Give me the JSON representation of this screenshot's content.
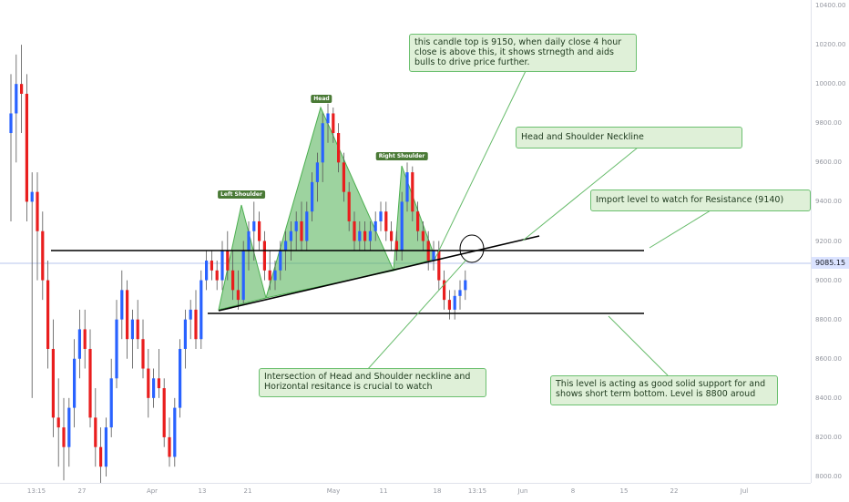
{
  "price_axis": {
    "ticks": [
      "10400.00",
      "10200.00",
      "10000.00",
      "9800.00",
      "9600.00",
      "9400.00",
      "9200.00",
      "9000.00",
      "8800.00",
      "8600.00",
      "8400.00",
      "8200.00",
      "8000.00"
    ],
    "current_price": "9085.15"
  },
  "time_axis": {
    "labels": [
      "13:15",
      "27",
      "Apr",
      "13",
      "21",
      "May",
      "11",
      "18",
      "13:15",
      "Jun",
      "8",
      "15",
      "22",
      "Jul"
    ]
  },
  "pattern_tags": {
    "left_shoulder": "Left Shoulder",
    "head": "Head",
    "right_shoulder": "Right Shoulder"
  },
  "annotations": {
    "candle_top": "this candle top is 9150, when daily close  4 hour close is above this, it shows strnegth and aids bulls to drive price further.",
    "neckline": "Head and Shoulder Neckline",
    "resistance": "Import level to watch for Resistance (9140)",
    "intersection": "Intersection of Head and Shoulder neckline and Horizontal resitance is crucial to watch",
    "support": "This level is acting as good solid support for and shows short term bottom. Level is 8800 aroud"
  },
  "colors": {
    "bull_candle": "#2962ff",
    "bear_candle": "#e91e1e",
    "pattern_fill": "#4caf50",
    "callout_bg": "#dff0d8",
    "callout_border": "#6cc070"
  },
  "chart_data": {
    "type": "candlestick",
    "interval": "4 hour",
    "y_unit": "USD",
    "ylim": [
      7960,
      10450
    ],
    "candles": [
      [
        9750,
        10050,
        9300,
        9850
      ],
      [
        9850,
        10150,
        9600,
        10000
      ],
      [
        10000,
        10200,
        9750,
        9950
      ],
      [
        9950,
        10050,
        9300,
        9400
      ],
      [
        9400,
        9550,
        8400,
        9450
      ],
      [
        9450,
        9550,
        9000,
        9250
      ],
      [
        9250,
        9350,
        8900,
        9000
      ],
      [
        9000,
        9100,
        8550,
        8650
      ],
      [
        8650,
        8800,
        8200,
        8300
      ],
      [
        8300,
        8500,
        8050,
        8250
      ],
      [
        8250,
        8400,
        7980,
        8150
      ],
      [
        8150,
        8400,
        8050,
        8350
      ],
      [
        8350,
        8700,
        8250,
        8600
      ],
      [
        8600,
        8850,
        8500,
        8750
      ],
      [
        8750,
        8850,
        8550,
        8650
      ],
      [
        8650,
        8750,
        8250,
        8300
      ],
      [
        8300,
        8450,
        8050,
        8150
      ],
      [
        8150,
        8250,
        7960,
        8050
      ],
      [
        8050,
        8300,
        8000,
        8250
      ],
      [
        8250,
        8600,
        8200,
        8500
      ],
      [
        8500,
        8900,
        8450,
        8800
      ],
      [
        8800,
        9050,
        8700,
        8950
      ],
      [
        8950,
        9000,
        8600,
        8700
      ],
      [
        8700,
        8850,
        8550,
        8800
      ],
      [
        8800,
        8900,
        8650,
        8700
      ],
      [
        8700,
        8800,
        8500,
        8550
      ],
      [
        8550,
        8650,
        8300,
        8400
      ],
      [
        8400,
        8550,
        8350,
        8500
      ],
      [
        8500,
        8650,
        8400,
        8450
      ],
      [
        8450,
        8500,
        8150,
        8200
      ],
      [
        8200,
        8300,
        8050,
        8100
      ],
      [
        8100,
        8400,
        8050,
        8350
      ],
      [
        8350,
        8700,
        8300,
        8650
      ],
      [
        8650,
        8850,
        8550,
        8800
      ],
      [
        8800,
        8900,
        8700,
        8850
      ],
      [
        8850,
        8950,
        8650,
        8700
      ],
      [
        8700,
        9050,
        8650,
        9000
      ],
      [
        9000,
        9150,
        8950,
        9100
      ],
      [
        9100,
        9150,
        9000,
        9050
      ],
      [
        9050,
        9100,
        8950,
        9000
      ],
      [
        9000,
        9200,
        8950,
        9150
      ],
      [
        9150,
        9250,
        9000,
        9050
      ],
      [
        9050,
        9150,
        8900,
        8950
      ],
      [
        8950,
        9050,
        8850,
        8900
      ],
      [
        8900,
        9200,
        8880,
        9150
      ],
      [
        9150,
        9300,
        9050,
        9250
      ],
      [
        9250,
        9400,
        9100,
        9300
      ],
      [
        9300,
        9350,
        9150,
        9200
      ],
      [
        9200,
        9250,
        9000,
        9050
      ],
      [
        9050,
        9150,
        8950,
        9000
      ],
      [
        9000,
        9100,
        8950,
        9050
      ],
      [
        9050,
        9200,
        9000,
        9150
      ],
      [
        9150,
        9250,
        9050,
        9200
      ],
      [
        9200,
        9300,
        9100,
        9250
      ],
      [
        9250,
        9350,
        9150,
        9300
      ],
      [
        9300,
        9400,
        9150,
        9200
      ],
      [
        9200,
        9400,
        9150,
        9350
      ],
      [
        9350,
        9550,
        9300,
        9500
      ],
      [
        9500,
        9650,
        9400,
        9600
      ],
      [
        9600,
        9850,
        9500,
        9800
      ],
      [
        9800,
        9900,
        9700,
        9850
      ],
      [
        9850,
        9880,
        9700,
        9750
      ],
      [
        9750,
        9800,
        9550,
        9600
      ],
      [
        9600,
        9650,
        9400,
        9450
      ],
      [
        9450,
        9500,
        9250,
        9300
      ],
      [
        9300,
        9350,
        9150,
        9200
      ],
      [
        9200,
        9300,
        9150,
        9250
      ],
      [
        9250,
        9300,
        9150,
        9200
      ],
      [
        9200,
        9300,
        9150,
        9250
      ],
      [
        9250,
        9350,
        9200,
        9300
      ],
      [
        9300,
        9400,
        9250,
        9350
      ],
      [
        9350,
        9400,
        9200,
        9250
      ],
      [
        9250,
        9300,
        9150,
        9200
      ],
      [
        9200,
        9250,
        9100,
        9150
      ],
      [
        9150,
        9450,
        9100,
        9400
      ],
      [
        9400,
        9600,
        9350,
        9550
      ],
      [
        9550,
        9580,
        9300,
        9350
      ],
      [
        9350,
        9400,
        9200,
        9250
      ],
      [
        9250,
        9300,
        9150,
        9200
      ],
      [
        9200,
        9250,
        9050,
        9100
      ],
      [
        9100,
        9200,
        9050,
        9150
      ],
      [
        9150,
        9200,
        8950,
        9000
      ],
      [
        9000,
        9050,
        8850,
        8900
      ],
      [
        8900,
        8950,
        8800,
        8850
      ],
      [
        8850,
        8950,
        8800,
        8920
      ],
      [
        8920,
        9000,
        8850,
        8950
      ],
      [
        8950,
        9050,
        8900,
        9000
      ]
    ],
    "horizontal_levels": [
      {
        "price": 9140
      },
      {
        "price": 8800
      }
    ]
  }
}
